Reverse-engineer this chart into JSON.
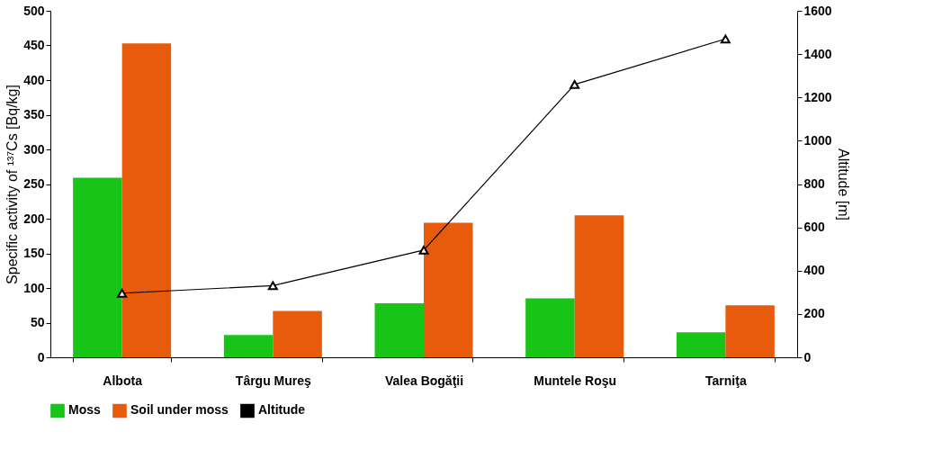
{
  "chart_data": {
    "type": "bar",
    "categories": [
      "Albota",
      "Târgu Mureş",
      "Valea Bogăţii",
      "Muntele Roşu",
      "Tarniţa"
    ],
    "ylabel": "Specific activity of ¹³⁷Cs [Bq/kg]",
    "y2label": "Altitude [m]",
    "ylim": [
      0,
      500
    ],
    "yticks": [
      0,
      50,
      100,
      150,
      200,
      250,
      300,
      350,
      400,
      450,
      500
    ],
    "y2lim": [
      0,
      1600
    ],
    "y2ticks": [
      0,
      200,
      400,
      600,
      800,
      1000,
      1200,
      1400,
      1600
    ],
    "grid": false,
    "legend": "bottom",
    "series": [
      {
        "name": "Moss",
        "color": "#17c417",
        "values": [
          259,
          32,
          78,
          85,
          36
        ]
      },
      {
        "name": "Soil under moss",
        "color": "#e85a0c",
        "values": [
          453,
          67,
          194,
          205,
          75
        ]
      },
      {
        "name": "Altitude",
        "type": "line",
        "axis": "y2",
        "color": "#000000",
        "marker": "triangle",
        "line_style": "solid",
        "values": [
          296,
          331,
          495,
          1260,
          1470
        ]
      }
    ]
  }
}
